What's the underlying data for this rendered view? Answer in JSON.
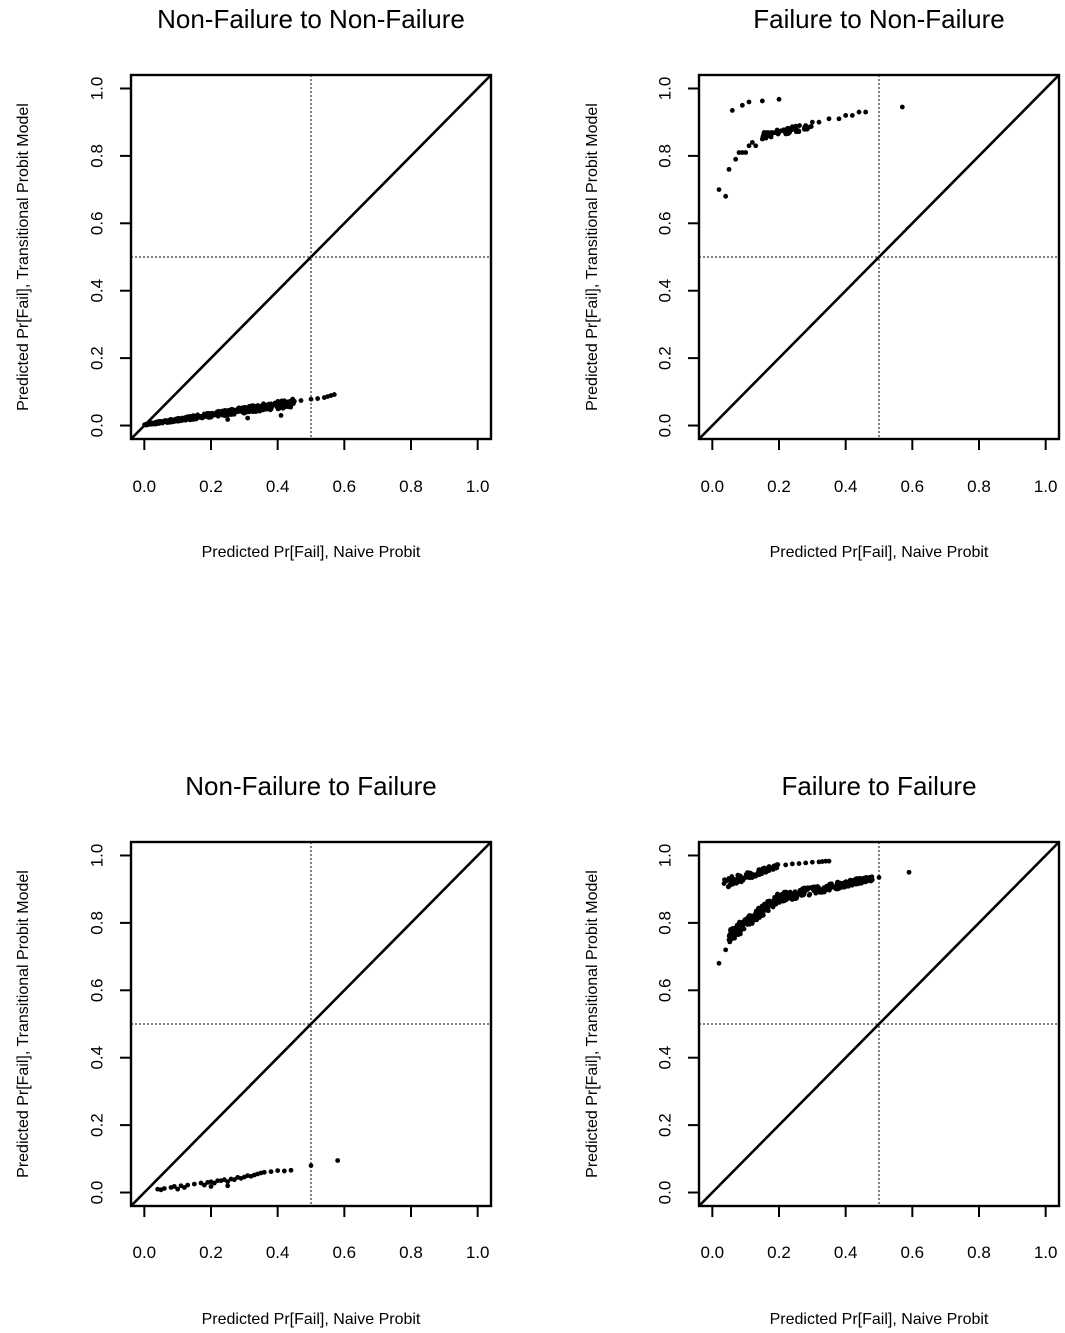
{
  "chart_data": [
    {
      "type": "scatter",
      "title": "Non-Failure to Non-Failure",
      "xlabel": "Predicted Pr[Fail], Naive Probit",
      "ylabel": "Predicted Pr[Fail], Transitional Probit Model",
      "xlim": [
        0,
        1
      ],
      "ylim": [
        0,
        1
      ],
      "xticks": [
        "0.0",
        "0.2",
        "0.4",
        "0.6",
        "0.8",
        "1.0"
      ],
      "yticks": [
        "0.0",
        "0.2",
        "0.4",
        "0.6",
        "0.8",
        "1.0"
      ],
      "reference_lines": {
        "diagonal": true,
        "vline_x": 0.5,
        "hline_y": 0.5
      },
      "bands": [
        {
          "x_from": 0.0,
          "x_to": 0.45,
          "y_lo_from": 0.0,
          "y_lo_to": 0.055,
          "y_hi_from": 0.005,
          "y_hi_to": 0.08,
          "n": 360
        }
      ],
      "points": [
        [
          0.02,
          0.005
        ],
        [
          0.05,
          0.012
        ],
        [
          0.08,
          0.018
        ],
        [
          0.1,
          0.02
        ],
        [
          0.14,
          0.026
        ],
        [
          0.18,
          0.03
        ],
        [
          0.22,
          0.038
        ],
        [
          0.26,
          0.044
        ],
        [
          0.3,
          0.052
        ],
        [
          0.34,
          0.058
        ],
        [
          0.38,
          0.064
        ],
        [
          0.41,
          0.068
        ],
        [
          0.43,
          0.07
        ],
        [
          0.45,
          0.072
        ],
        [
          0.47,
          0.074
        ],
        [
          0.5,
          0.078
        ],
        [
          0.52,
          0.08
        ],
        [
          0.54,
          0.083
        ],
        [
          0.55,
          0.086
        ],
        [
          0.56,
          0.089
        ],
        [
          0.57,
          0.092
        ],
        [
          0.31,
          0.022
        ],
        [
          0.41,
          0.03
        ],
        [
          0.25,
          0.018
        ]
      ]
    },
    {
      "type": "scatter",
      "title": "Failure to Non-Failure",
      "xlabel": "Predicted Pr[Fail], Naive Probit",
      "ylabel": "Predicted Pr[Fail], Transitional Probit Model",
      "xlim": [
        0,
        1
      ],
      "ylim": [
        0,
        1
      ],
      "xticks": [
        "0.0",
        "0.2",
        "0.4",
        "0.6",
        "0.8",
        "1.0"
      ],
      "yticks": [
        "0.0",
        "0.2",
        "0.4",
        "0.6",
        "0.8",
        "1.0"
      ],
      "reference_lines": {
        "diagonal": true,
        "vline_x": 0.5,
        "hline_y": 0.5
      },
      "bands": [
        {
          "x_from": 0.15,
          "x_to": 0.3,
          "y_lo_from": 0.85,
          "y_lo_to": 0.88,
          "y_hi_from": 0.87,
          "y_hi_to": 0.9,
          "n": 60
        }
      ],
      "points": [
        [
          0.02,
          0.7
        ],
        [
          0.04,
          0.68
        ],
        [
          0.05,
          0.76
        ],
        [
          0.07,
          0.79
        ],
        [
          0.08,
          0.81
        ],
        [
          0.09,
          0.81
        ],
        [
          0.1,
          0.81
        ],
        [
          0.11,
          0.83
        ],
        [
          0.12,
          0.84
        ],
        [
          0.13,
          0.83
        ],
        [
          0.15,
          0.85
        ],
        [
          0.17,
          0.86
        ],
        [
          0.2,
          0.87
        ],
        [
          0.25,
          0.88
        ],
        [
          0.28,
          0.89
        ],
        [
          0.3,
          0.9
        ],
        [
          0.32,
          0.9
        ],
        [
          0.35,
          0.91
        ],
        [
          0.38,
          0.91
        ],
        [
          0.4,
          0.92
        ],
        [
          0.42,
          0.92
        ],
        [
          0.44,
          0.93
        ],
        [
          0.46,
          0.93
        ],
        [
          0.57,
          0.945
        ],
        [
          0.06,
          0.935
        ],
        [
          0.09,
          0.95
        ],
        [
          0.11,
          0.96
        ],
        [
          0.15,
          0.963
        ],
        [
          0.2,
          0.968
        ]
      ]
    },
    {
      "type": "scatter",
      "title": "Non-Failure to Failure",
      "xlabel": "Predicted Pr[Fail], Naive Probit",
      "ylabel": "Predicted Pr[Fail], Transitional Probit Model",
      "xlim": [
        0,
        1
      ],
      "ylim": [
        0,
        1
      ],
      "xticks": [
        "0.0",
        "0.2",
        "0.4",
        "0.6",
        "0.8",
        "1.0"
      ],
      "yticks": [
        "0.0",
        "0.2",
        "0.4",
        "0.6",
        "0.8",
        "1.0"
      ],
      "reference_lines": {
        "diagonal": true,
        "vline_x": 0.5,
        "hline_y": 0.5
      },
      "bands": [],
      "points": [
        [
          0.04,
          0.01
        ],
        [
          0.05,
          0.008
        ],
        [
          0.06,
          0.012
        ],
        [
          0.08,
          0.015
        ],
        [
          0.09,
          0.018
        ],
        [
          0.1,
          0.01
        ],
        [
          0.11,
          0.02
        ],
        [
          0.12,
          0.015
        ],
        [
          0.13,
          0.022
        ],
        [
          0.15,
          0.025
        ],
        [
          0.17,
          0.028
        ],
        [
          0.18,
          0.022
        ],
        [
          0.19,
          0.03
        ],
        [
          0.2,
          0.032
        ],
        [
          0.21,
          0.028
        ],
        [
          0.22,
          0.035
        ],
        [
          0.23,
          0.035
        ],
        [
          0.24,
          0.038
        ],
        [
          0.25,
          0.032
        ],
        [
          0.26,
          0.04
        ],
        [
          0.27,
          0.038
        ],
        [
          0.28,
          0.045
        ],
        [
          0.29,
          0.042
        ],
        [
          0.3,
          0.046
        ],
        [
          0.31,
          0.05
        ],
        [
          0.32,
          0.048
        ],
        [
          0.33,
          0.052
        ],
        [
          0.34,
          0.055
        ],
        [
          0.35,
          0.058
        ],
        [
          0.36,
          0.06
        ],
        [
          0.38,
          0.062
        ],
        [
          0.4,
          0.065
        ],
        [
          0.42,
          0.064
        ],
        [
          0.44,
          0.066
        ],
        [
          0.25,
          0.02
        ],
        [
          0.2,
          0.018
        ],
        [
          0.5,
          0.08
        ],
        [
          0.58,
          0.095
        ]
      ]
    },
    {
      "type": "scatter",
      "title": "Failure to Failure",
      "xlabel": "Predicted Pr[Fail], Naive Probit",
      "ylabel": "Predicted Pr[Fail], Transitional Probit Model",
      "xlim": [
        0,
        1
      ],
      "ylim": [
        0,
        1
      ],
      "xticks": [
        "0.0",
        "0.2",
        "0.4",
        "0.6",
        "0.8",
        "1.0"
      ],
      "yticks": [
        "0.0",
        "0.2",
        "0.4",
        "0.6",
        "0.8",
        "1.0"
      ],
      "reference_lines": {
        "diagonal": true,
        "vline_x": 0.5,
        "hline_y": 0.5
      },
      "bands": [
        {
          "x_from": 0.05,
          "x_to": 0.2,
          "y_lo_from": 0.74,
          "y_lo_to": 0.86,
          "y_hi_from": 0.78,
          "y_hi_to": 0.89,
          "n": 140
        },
        {
          "x_from": 0.2,
          "x_to": 0.48,
          "y_lo_from": 0.86,
          "y_lo_to": 0.925,
          "y_hi_from": 0.89,
          "y_hi_to": 0.94,
          "n": 200
        },
        {
          "x_from": 0.03,
          "x_to": 0.2,
          "y_lo_from": 0.9,
          "y_lo_to": 0.965,
          "y_hi_from": 0.93,
          "y_hi_to": 0.975,
          "n": 90
        }
      ],
      "points": [
        [
          0.02,
          0.68
        ],
        [
          0.04,
          0.72
        ],
        [
          0.05,
          0.75
        ],
        [
          0.06,
          0.77
        ],
        [
          0.07,
          0.78
        ],
        [
          0.5,
          0.935
        ],
        [
          0.59,
          0.95
        ],
        [
          0.22,
          0.972
        ],
        [
          0.24,
          0.975
        ],
        [
          0.26,
          0.976
        ],
        [
          0.28,
          0.978
        ],
        [
          0.3,
          0.98
        ],
        [
          0.32,
          0.981
        ],
        [
          0.33,
          0.982
        ],
        [
          0.34,
          0.983
        ],
        [
          0.35,
          0.983
        ]
      ]
    }
  ]
}
